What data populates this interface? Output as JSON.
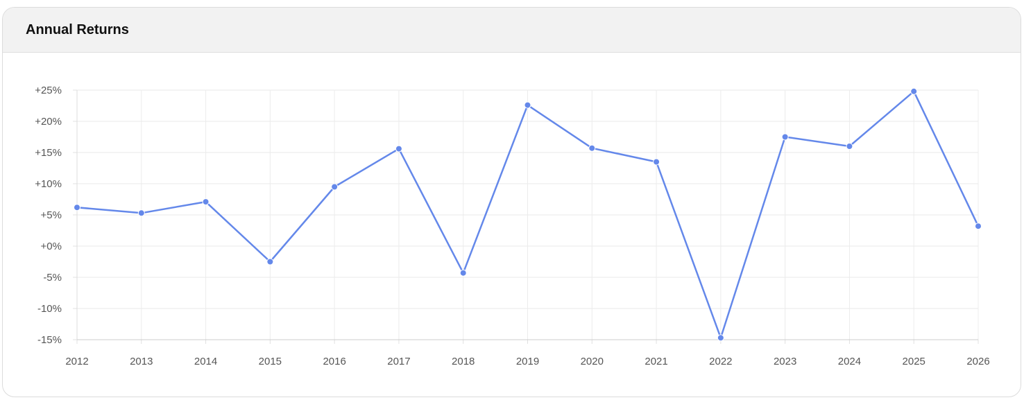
{
  "card": {
    "title": "Annual Returns"
  },
  "chart_data": {
    "type": "line",
    "title": "Annual Returns",
    "xlabel": "",
    "ylabel": "",
    "x": [
      "2012",
      "2013",
      "2014",
      "2015",
      "2016",
      "2017",
      "2018",
      "2019",
      "2020",
      "2021",
      "2022",
      "2023",
      "2024",
      "2025",
      "2026"
    ],
    "series": [
      {
        "values": [
          6.2,
          5.3,
          7.1,
          -2.5,
          9.5,
          15.6,
          -4.3,
          22.6,
          15.7,
          13.5,
          -14.7,
          17.5,
          16.0,
          24.8,
          3.2
        ],
        "color": "#6488ea"
      }
    ],
    "ylim": [
      -15,
      25
    ],
    "yticks": [
      25,
      20,
      15,
      10,
      5,
      0,
      -5,
      -10,
      -15
    ],
    "ytick_labels": [
      "+25%",
      "+20%",
      "+15%",
      "+10%",
      "+5%",
      "+0%",
      "-5%",
      "-10%",
      "-15%"
    ],
    "grid": true,
    "legend": "none"
  }
}
